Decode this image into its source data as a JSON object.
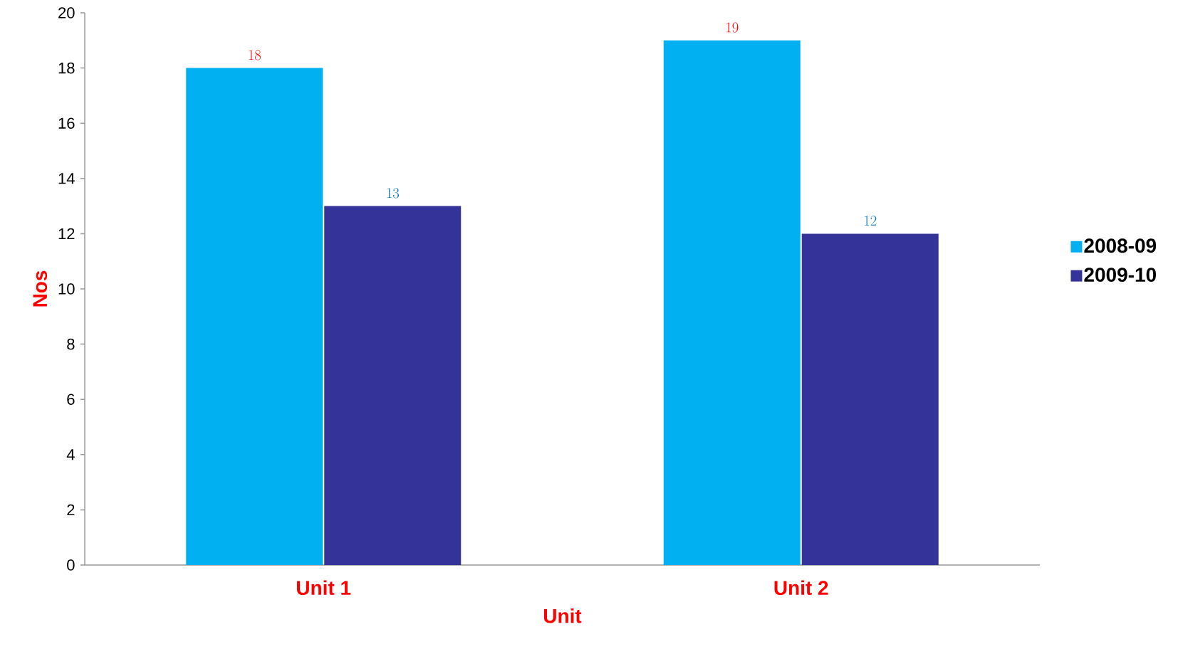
{
  "chart_data": {
    "type": "bar",
    "xlabel": "Unit",
    "ylabel": "Nos",
    "categories": [
      "Unit 1",
      "Unit 2"
    ],
    "series": [
      {
        "name": "2008-09",
        "color": "#00b0f0",
        "values": [
          18,
          19
        ]
      },
      {
        "name": "2009-10",
        "color": "#333399",
        "values": [
          13,
          12
        ]
      }
    ],
    "ylim": [
      0,
      20
    ],
    "yticks": [
      0,
      2,
      4,
      6,
      8,
      10,
      12,
      14,
      16,
      18,
      20
    ],
    "data_labels": true,
    "legend": "right",
    "grid": false
  }
}
